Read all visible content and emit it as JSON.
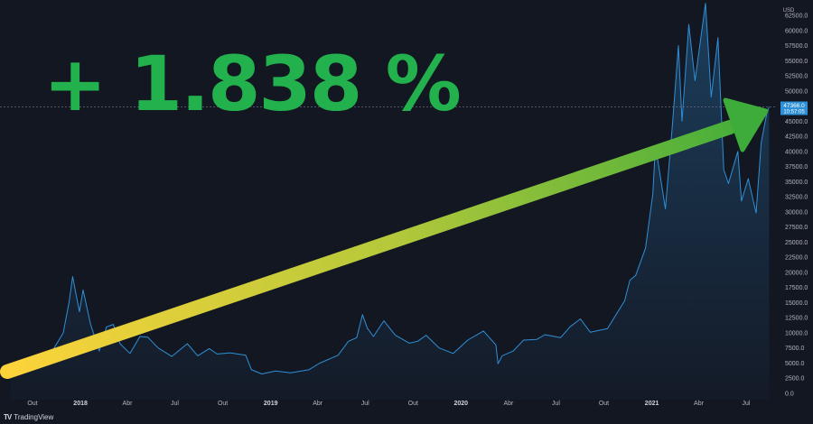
{
  "headline": "+ 1.838 %",
  "currency": "USD",
  "price_label": {
    "price": "47366.0",
    "countdown": "10:57:05"
  },
  "watermark": {
    "brand": "TradingView"
  },
  "colors": {
    "background": "#131722",
    "line": "#2f8fd6",
    "headline": "#22b14c",
    "price_tag": "#2d8fd5",
    "arrow_start": "#fdd33a",
    "arrow_end": "#3dac3a"
  },
  "chart_data": {
    "type": "area",
    "ylim": [
      0,
      65000
    ],
    "y_ticks": [
      "0.0",
      "2500.0",
      "5000.0",
      "7500.0",
      "10000.0",
      "12500.0",
      "15000.0",
      "17500.0",
      "20000.0",
      "22500.0",
      "25000.0",
      "27500.0",
      "30000.0",
      "32500.0",
      "35000.0",
      "37500.0",
      "40000.0",
      "42500.0",
      "45000.0",
      "47500.0",
      "50000.0",
      "52500.0",
      "55000.0",
      "57500.0",
      "60000.0",
      "62500.0"
    ],
    "x_ticks": [
      {
        "label": "Out",
        "date": "2017-10-01"
      },
      {
        "label": "2018",
        "date": "2018-01-01",
        "bold": true
      },
      {
        "label": "Abr",
        "date": "2018-04-01"
      },
      {
        "label": "Jul",
        "date": "2018-07-01"
      },
      {
        "label": "Out",
        "date": "2018-10-01"
      },
      {
        "label": "2019",
        "date": "2019-01-01",
        "bold": true
      },
      {
        "label": "Abr",
        "date": "2019-04-01"
      },
      {
        "label": "Jul",
        "date": "2019-07-01"
      },
      {
        "label": "Out",
        "date": "2019-10-01"
      },
      {
        "label": "2020",
        "date": "2020-01-01",
        "bold": true
      },
      {
        "label": "Abr",
        "date": "2020-04-01"
      },
      {
        "label": "Jul",
        "date": "2020-07-01"
      },
      {
        "label": "Out",
        "date": "2020-10-01"
      },
      {
        "label": "2021",
        "date": "2021-01-01",
        "bold": true
      },
      {
        "label": "Abr",
        "date": "2021-04-01"
      },
      {
        "label": "Jul",
        "date": "2021-07-01"
      }
    ],
    "series": [
      {
        "points": [
          [
            "2017-08-20",
            4100
          ],
          [
            "2017-09-01",
            4700
          ],
          [
            "2017-09-15",
            3700
          ],
          [
            "2017-10-01",
            4400
          ],
          [
            "2017-10-20",
            5900
          ],
          [
            "2017-11-10",
            7300
          ],
          [
            "2017-11-29",
            10000
          ],
          [
            "2017-12-10",
            15000
          ],
          [
            "2017-12-17",
            19300
          ],
          [
            "2017-12-30",
            13500
          ],
          [
            "2018-01-06",
            17100
          ],
          [
            "2018-01-20",
            11500
          ],
          [
            "2018-02-06",
            7000
          ],
          [
            "2018-02-20",
            11000
          ],
          [
            "2018-03-05",
            11400
          ],
          [
            "2018-03-18",
            8200
          ],
          [
            "2018-04-06",
            6600
          ],
          [
            "2018-04-25",
            9400
          ],
          [
            "2018-05-10",
            9300
          ],
          [
            "2018-05-30",
            7500
          ],
          [
            "2018-06-25",
            6100
          ],
          [
            "2018-07-25",
            8200
          ],
          [
            "2018-08-14",
            6200
          ],
          [
            "2018-09-05",
            7400
          ],
          [
            "2018-09-20",
            6500
          ],
          [
            "2018-10-15",
            6700
          ],
          [
            "2018-11-14",
            6300
          ],
          [
            "2018-11-25",
            3900
          ],
          [
            "2018-12-15",
            3200
          ],
          [
            "2019-01-10",
            3700
          ],
          [
            "2019-02-08",
            3400
          ],
          [
            "2019-03-15",
            3900
          ],
          [
            "2019-04-05",
            5000
          ],
          [
            "2019-05-10",
            6300
          ],
          [
            "2019-05-30",
            8600
          ],
          [
            "2019-06-15",
            9200
          ],
          [
            "2019-06-26",
            13000
          ],
          [
            "2019-07-05",
            10800
          ],
          [
            "2019-07-17",
            9400
          ],
          [
            "2019-08-06",
            12000
          ],
          [
            "2019-08-28",
            9600
          ],
          [
            "2019-09-24",
            8300
          ],
          [
            "2019-10-10",
            8600
          ],
          [
            "2019-10-26",
            9600
          ],
          [
            "2019-11-20",
            7500
          ],
          [
            "2019-12-17",
            6600
          ],
          [
            "2020-01-14",
            8800
          ],
          [
            "2020-02-13",
            10300
          ],
          [
            "2020-03-08",
            8000
          ],
          [
            "2020-03-12",
            4900
          ],
          [
            "2020-03-20",
            6200
          ],
          [
            "2020-04-10",
            7000
          ],
          [
            "2020-04-30",
            8800
          ],
          [
            "2020-05-25",
            8900
          ],
          [
            "2020-06-10",
            9700
          ],
          [
            "2020-07-10",
            9200
          ],
          [
            "2020-07-28",
            11000
          ],
          [
            "2020-08-17",
            12300
          ],
          [
            "2020-09-05",
            10100
          ],
          [
            "2020-10-08",
            10700
          ],
          [
            "2020-10-25",
            13100
          ],
          [
            "2020-11-10",
            15300
          ],
          [
            "2020-11-20",
            18700
          ],
          [
            "2020-12-01",
            19500
          ],
          [
            "2020-12-20",
            24000
          ],
          [
            "2021-01-03",
            33000
          ],
          [
            "2021-01-08",
            41000
          ],
          [
            "2021-01-27",
            30500
          ],
          [
            "2021-02-10",
            44800
          ],
          [
            "2021-02-21",
            57500
          ],
          [
            "2021-02-28",
            45000
          ],
          [
            "2021-03-13",
            61000
          ],
          [
            "2021-03-25",
            51700
          ],
          [
            "2021-04-14",
            64500
          ],
          [
            "2021-04-25",
            49000
          ],
          [
            "2021-05-08",
            58800
          ],
          [
            "2021-05-19",
            37000
          ],
          [
            "2021-05-28",
            34700
          ],
          [
            "2021-06-15",
            40000
          ],
          [
            "2021-06-22",
            31800
          ],
          [
            "2021-07-05",
            35500
          ],
          [
            "2021-07-20",
            29800
          ],
          [
            "2021-07-30",
            41500
          ],
          [
            "2021-08-10",
            46500
          ],
          [
            "2021-08-14",
            47366
          ]
        ]
      }
    ]
  }
}
